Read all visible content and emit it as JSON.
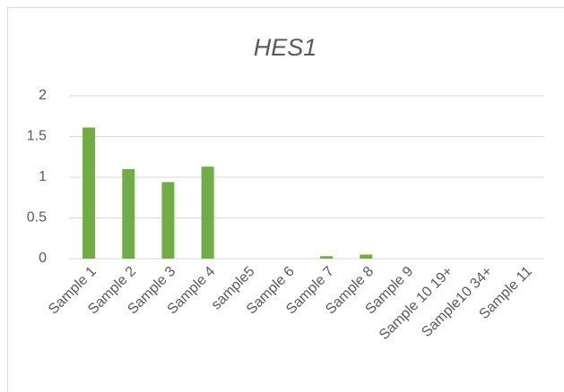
{
  "chart_data": {
    "type": "bar",
    "title": "HES1",
    "categories": [
      "Sample 1",
      "Sample 2",
      "Sample 3",
      "Sample 4",
      "sample5",
      "Sample 6",
      "Sample 7",
      "Sample 8",
      "Sample 9",
      "Sample 10 19+",
      "Sample10 34+",
      "Sample 11"
    ],
    "values": [
      1.61,
      1.1,
      0.94,
      1.13,
      0,
      0,
      0.03,
      0.05,
      0,
      0,
      0,
      0
    ],
    "color": "#70ad47",
    "ylim": [
      0,
      2
    ],
    "yticks": [
      0,
      0.5,
      1,
      1.5,
      2
    ],
    "grid": true
  }
}
